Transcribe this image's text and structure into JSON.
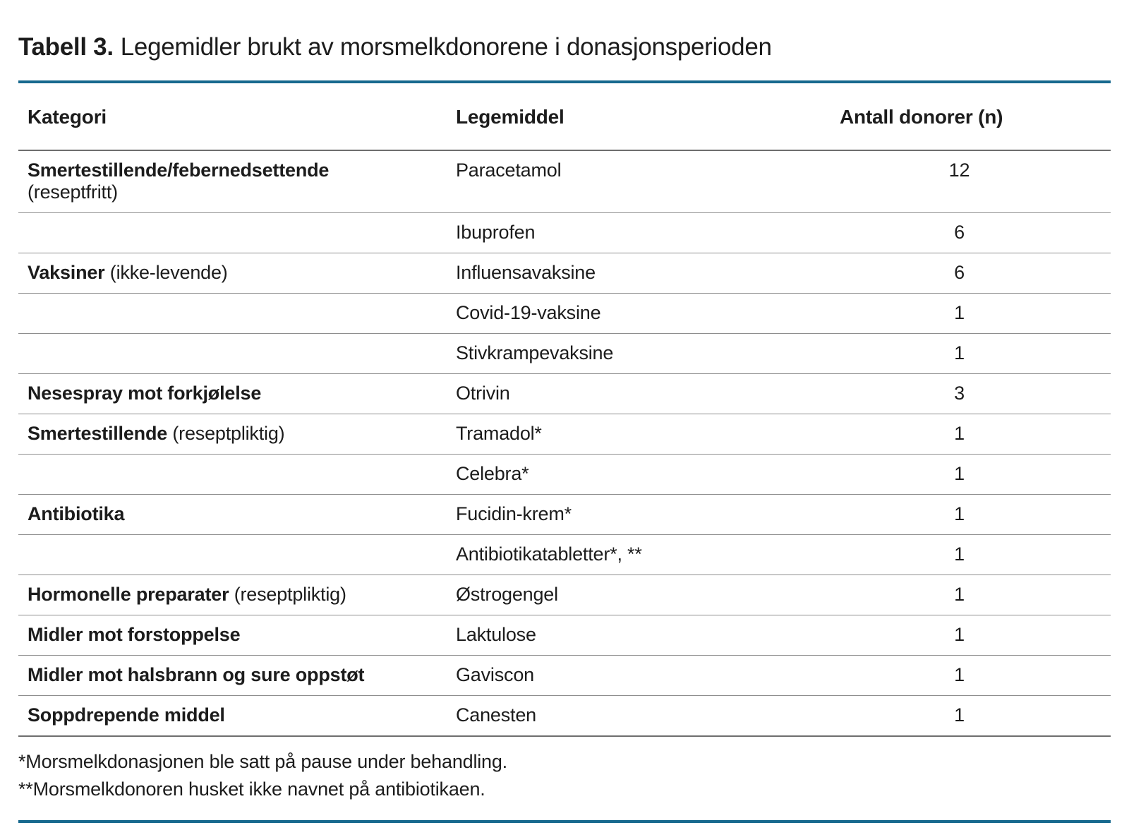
{
  "title": {
    "prefix": "Tabell 3.",
    "text": "Legemidler brukt av morsmelkdonorene i donasjonsperioden"
  },
  "accent_color": "#17698e",
  "table": {
    "columns": [
      "Kategori",
      "Legemiddel",
      "Antall donorer (n)"
    ],
    "rows": [
      {
        "category_bold": "Smertestillende/febernedsettende",
        "category_note_block": "(reseptfritt)",
        "legemiddel": "Paracetamol",
        "antall": "12"
      },
      {
        "legemiddel": "Ibuprofen",
        "antall": "6"
      },
      {
        "category_bold": "Vaksiner",
        "category_note": " (ikke-levende)",
        "legemiddel": "Influensavaksine",
        "antall": "6"
      },
      {
        "legemiddel": "Covid-19-vaksine",
        "antall": "1"
      },
      {
        "legemiddel": "Stivkrampevaksine",
        "antall": "1"
      },
      {
        "category_bold": "Nesespray mot forkjølelse",
        "legemiddel": "Otrivin",
        "antall": "3"
      },
      {
        "category_bold": "Smertestillende",
        "category_note": " (reseptpliktig)",
        "legemiddel": "Tramadol*",
        "antall": "1"
      },
      {
        "legemiddel": "Celebra*",
        "antall": "1"
      },
      {
        "category_bold": "Antibiotika",
        "legemiddel": "Fucidin-krem*",
        "antall": "1"
      },
      {
        "legemiddel": "Antibiotikatabletter*, **",
        "antall": "1"
      },
      {
        "category_bold": "Hormonelle preparater",
        "category_note": " (reseptpliktig)",
        "legemiddel": "Østrogengel",
        "antall": "1"
      },
      {
        "category_bold": "Midler mot forstoppelse",
        "legemiddel": "Laktulose",
        "antall": "1"
      },
      {
        "category_bold": "Midler mot halsbrann og sure oppstøt",
        "legemiddel": "Gaviscon",
        "antall": "1"
      },
      {
        "category_bold": "Soppdrepende middel",
        "legemiddel": "Canesten",
        "antall": "1"
      }
    ],
    "footnotes": [
      "*Morsmelkdonasjonen ble satt på pause under behandling.",
      "**Morsmelkdonoren husket ikke navnet på antibiotikaen."
    ]
  }
}
